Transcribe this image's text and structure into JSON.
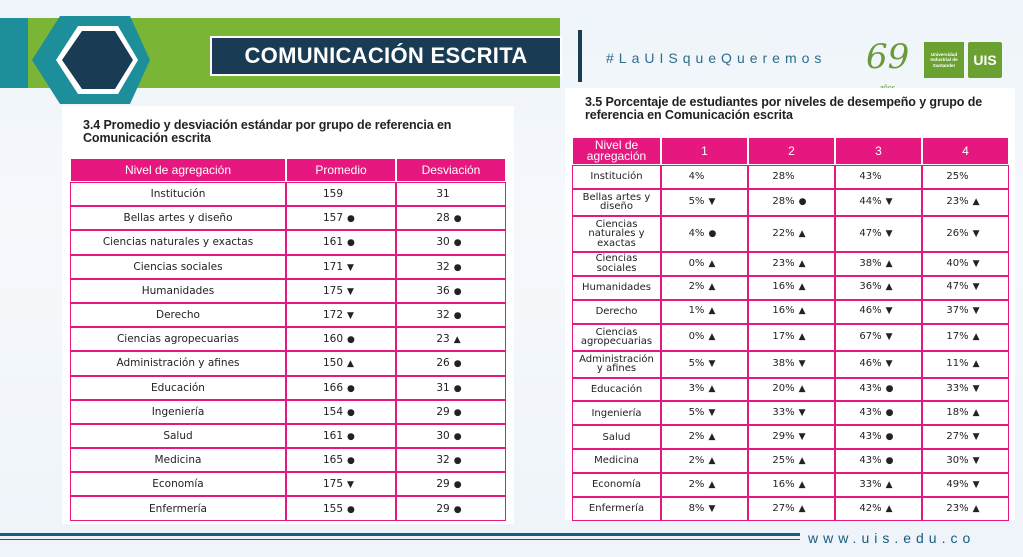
{
  "header": {
    "title": "COMUNICACIÓN ESCRITA",
    "hashtag": "#LaUISqueQueremos",
    "anniv_number": "69",
    "anniv_word": "años",
    "university_name": "Universidad Industrial de Santander",
    "logo_text": "UIS"
  },
  "colors": {
    "accent": "#e6177e",
    "header_green": "#7ab536",
    "header_navy": "#1a3b54",
    "teal": "#1c8f9a"
  },
  "table_left": {
    "caption": "3.4 Promedio y desviación estándar por grupo de referencia en Comunicación escrita",
    "headers": [
      "Nivel de agregación",
      "Promedio",
      "Desviación"
    ],
    "rows": [
      {
        "label": "Institución",
        "promedio": "159",
        "pm": "",
        "desviacion": "31",
        "dm": ""
      },
      {
        "label": "Bellas artes y diseño",
        "promedio": "157",
        "pm": "●",
        "desviacion": "28",
        "dm": "●"
      },
      {
        "label": "Ciencias naturales y exactas",
        "promedio": "161",
        "pm": "●",
        "desviacion": "30",
        "dm": "●"
      },
      {
        "label": "Ciencias sociales",
        "promedio": "171",
        "pm": "▼",
        "desviacion": "32",
        "dm": "●"
      },
      {
        "label": "Humanidades",
        "promedio": "175",
        "pm": "▼",
        "desviacion": "36",
        "dm": "●"
      },
      {
        "label": "Derecho",
        "promedio": "172",
        "pm": "▼",
        "desviacion": "32",
        "dm": "●"
      },
      {
        "label": "Ciencias agropecuarias",
        "promedio": "160",
        "pm": "●",
        "desviacion": "23",
        "dm": "▲"
      },
      {
        "label": "Administración y afines",
        "promedio": "150",
        "pm": "▲",
        "desviacion": "26",
        "dm": "●"
      },
      {
        "label": "Educación",
        "promedio": "166",
        "pm": "●",
        "desviacion": "31",
        "dm": "●"
      },
      {
        "label": "Ingeniería",
        "promedio": "154",
        "pm": "●",
        "desviacion": "29",
        "dm": "●"
      },
      {
        "label": "Salud",
        "promedio": "161",
        "pm": "●",
        "desviacion": "30",
        "dm": "●"
      },
      {
        "label": "Medicina",
        "promedio": "165",
        "pm": "●",
        "desviacion": "32",
        "dm": "●"
      },
      {
        "label": "Economía",
        "promedio": "175",
        "pm": "▼",
        "desviacion": "29",
        "dm": "●"
      },
      {
        "label": "Enfermería",
        "promedio": "155",
        "pm": "●",
        "desviacion": "29",
        "dm": "●"
      }
    ]
  },
  "table_right": {
    "caption": "3.5 Porcentaje de estudiantes por niveles de desempeño y grupo de referencia en Comunicación escrita",
    "headers": [
      "Nivel de agregación",
      "1",
      "2",
      "3",
      "4"
    ],
    "rows": [
      {
        "label": "Institución",
        "cells": [
          [
            "4%",
            ""
          ],
          [
            "28%",
            ""
          ],
          [
            "43%",
            ""
          ],
          [
            "25%",
            ""
          ]
        ]
      },
      {
        "label": "Bellas artes y diseño",
        "cells": [
          [
            "5%",
            "▼"
          ],
          [
            "28%",
            "●"
          ],
          [
            "44%",
            "▼"
          ],
          [
            "23%",
            "▲"
          ]
        ]
      },
      {
        "label": "Ciencias naturales y exactas",
        "cells": [
          [
            "4%",
            "●"
          ],
          [
            "22%",
            "▲"
          ],
          [
            "47%",
            "▼"
          ],
          [
            "26%",
            "▼"
          ]
        ]
      },
      {
        "label": "Ciencias sociales",
        "cells": [
          [
            "0%",
            "▲"
          ],
          [
            "23%",
            "▲"
          ],
          [
            "38%",
            "▲"
          ],
          [
            "40%",
            "▼"
          ]
        ]
      },
      {
        "label": "Humanidades",
        "cells": [
          [
            "2%",
            "▲"
          ],
          [
            "16%",
            "▲"
          ],
          [
            "36%",
            "▲"
          ],
          [
            "47%",
            "▼"
          ]
        ]
      },
      {
        "label": "Derecho",
        "cells": [
          [
            "1%",
            "▲"
          ],
          [
            "16%",
            "▲"
          ],
          [
            "46%",
            "▼"
          ],
          [
            "37%",
            "▼"
          ]
        ]
      },
      {
        "label": "Ciencias agropecuarias",
        "cells": [
          [
            "0%",
            "▲"
          ],
          [
            "17%",
            "▲"
          ],
          [
            "67%",
            "▼"
          ],
          [
            "17%",
            "▲"
          ]
        ]
      },
      {
        "label": "Administración y afines",
        "cells": [
          [
            "5%",
            "▼"
          ],
          [
            "38%",
            "▼"
          ],
          [
            "46%",
            "▼"
          ],
          [
            "11%",
            "▲"
          ]
        ]
      },
      {
        "label": "Educación",
        "cells": [
          [
            "3%",
            "▲"
          ],
          [
            "20%",
            "▲"
          ],
          [
            "43%",
            "●"
          ],
          [
            "33%",
            "▼"
          ]
        ]
      },
      {
        "label": "Ingeniería",
        "cells": [
          [
            "5%",
            "▼"
          ],
          [
            "33%",
            "▼"
          ],
          [
            "43%",
            "●"
          ],
          [
            "18%",
            "▲"
          ]
        ]
      },
      {
        "label": "Salud",
        "cells": [
          [
            "2%",
            "▲"
          ],
          [
            "29%",
            "▼"
          ],
          [
            "43%",
            "●"
          ],
          [
            "27%",
            "▼"
          ]
        ]
      },
      {
        "label": "Medicina",
        "cells": [
          [
            "2%",
            "▲"
          ],
          [
            "25%",
            "▲"
          ],
          [
            "43%",
            "●"
          ],
          [
            "30%",
            "▼"
          ]
        ]
      },
      {
        "label": "Economía",
        "cells": [
          [
            "2%",
            "▲"
          ],
          [
            "16%",
            "▲"
          ],
          [
            "33%",
            "▲"
          ],
          [
            "49%",
            "▼"
          ]
        ]
      },
      {
        "label": "Enfermería",
        "cells": [
          [
            "8%",
            "▼"
          ],
          [
            "27%",
            "▲"
          ],
          [
            "42%",
            "▲"
          ],
          [
            "23%",
            "▲"
          ]
        ]
      }
    ]
  },
  "footer": {
    "url": "www.uis.edu.co"
  }
}
